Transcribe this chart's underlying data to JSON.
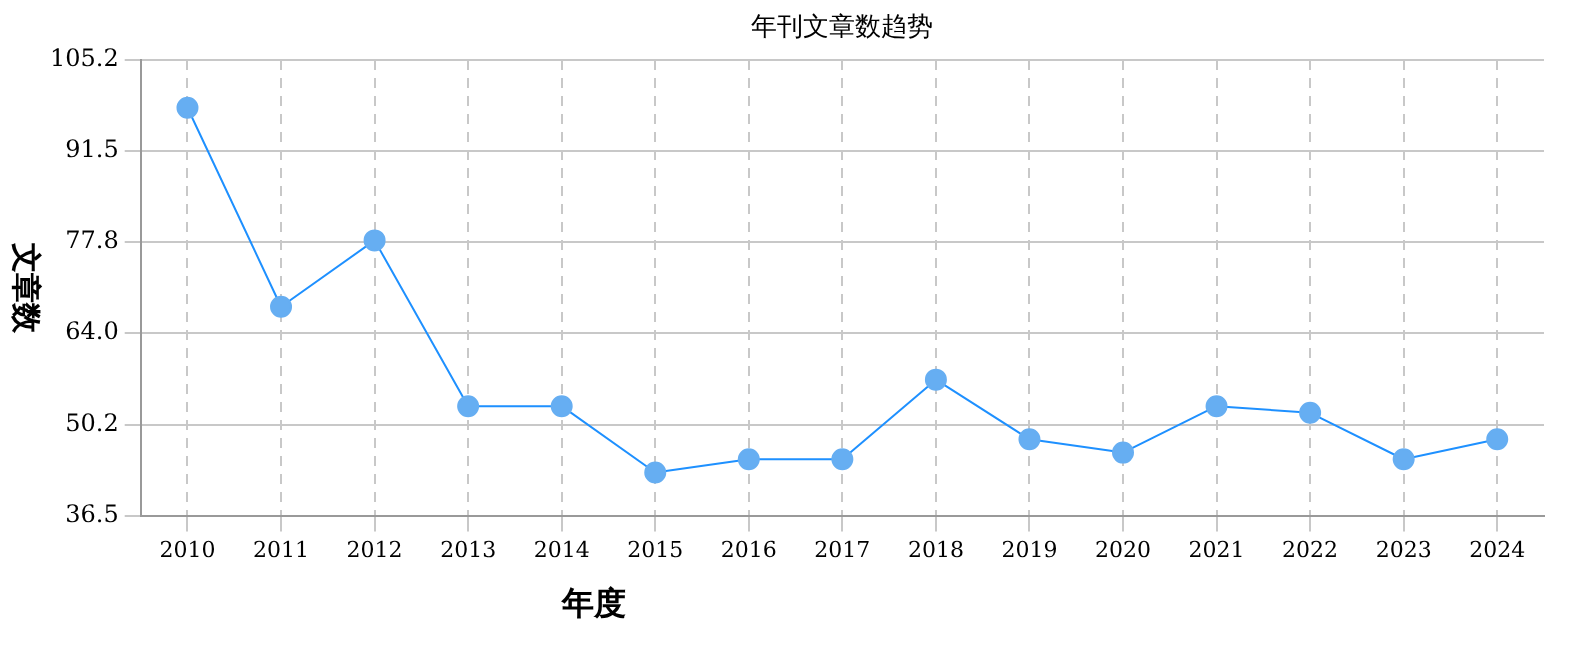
{
  "chart_data": {
    "type": "line",
    "title": "年刊文章数趋势",
    "xlabel": "年度",
    "ylabel": "文章数",
    "categories": [
      "2010",
      "2011",
      "2012",
      "2013",
      "2014",
      "2015",
      "2016",
      "2017",
      "2018",
      "2019",
      "2020",
      "2021",
      "2022",
      "2023",
      "2024"
    ],
    "series": [
      {
        "color": "#1e90ff",
        "values": [
          98,
          68,
          78,
          53,
          53,
          43,
          45,
          45,
          57,
          48,
          46,
          53,
          52,
          45,
          48
        ]
      }
    ],
    "ylim": [
      36.5,
      105.2
    ],
    "yticks": [
      36.5,
      50.2,
      {
        "value": 64,
        "label": "64.0"
      },
      77.8,
      91.5,
      105.2
    ],
    "grid": true,
    "marker": "circle",
    "line_style": "solid",
    "legend": false
  }
}
